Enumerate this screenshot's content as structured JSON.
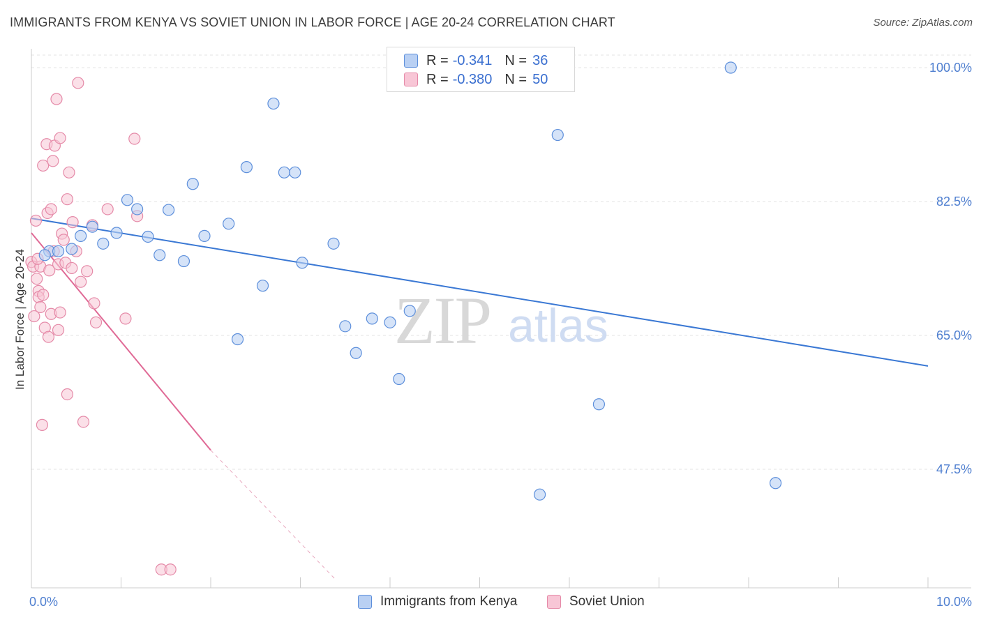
{
  "header": {
    "title": "IMMIGRANTS FROM KENYA VS SOVIET UNION IN LABOR FORCE | AGE 20-24 CORRELATION CHART",
    "source": "Source: ZipAtlas.com"
  },
  "watermark": {
    "zip": "ZIP",
    "atlas": "atlas"
  },
  "colors": {
    "blue_fill": "#b9d0f3",
    "blue_stroke": "#5d8fdb",
    "blue_line": "#3a78d4",
    "pink_fill": "#f8c6d6",
    "pink_stroke": "#e58aa8",
    "pink_line": "#e06a96",
    "accent_text": "#3a6fd0",
    "grid": "#e3e3e3"
  },
  "legend": {
    "rows": [
      {
        "r_label": "R =",
        "r_value": "-0.341",
        "n_label": "N =",
        "n_value": "36"
      },
      {
        "r_label": "R =",
        "r_value": "-0.380",
        "n_label": "N =",
        "n_value": "50"
      }
    ]
  },
  "bottom_legend": {
    "series1": "Immigrants from Kenya",
    "series2": "Soviet Union"
  },
  "chart_data": {
    "type": "scatter",
    "title": "IMMIGRANTS FROM KENYA VS SOVIET UNION IN LABOR FORCE | AGE 20-24 CORRELATION CHART",
    "xlabel": "",
    "ylabel": "In Labor Force | Age 20-24",
    "xlim": [
      0,
      10
    ],
    "ylim": [
      32.5,
      102
    ],
    "x_tick_labels": [
      {
        "value": 0,
        "label": "0.0%"
      },
      {
        "value": 10,
        "label": "10.0%"
      }
    ],
    "y_tick_labels": [
      {
        "value": 47.5,
        "label": "47.5%"
      },
      {
        "value": 65.0,
        "label": "65.0%"
      },
      {
        "value": 82.5,
        "label": "82.5%"
      },
      {
        "value": 100.0,
        "label": "100.0%"
      }
    ],
    "series": [
      {
        "name": "Immigrants from Kenya",
        "color": "#5d8fdb",
        "points": [
          [
            0.2,
            76.0
          ],
          [
            0.15,
            75.5
          ],
          [
            0.45,
            76.3
          ],
          [
            0.55,
            78.0
          ],
          [
            0.68,
            79.2
          ],
          [
            0.8,
            77.0
          ],
          [
            0.95,
            78.4
          ],
          [
            1.07,
            82.7
          ],
          [
            1.18,
            81.5
          ],
          [
            1.3,
            77.9
          ],
          [
            1.43,
            75.5
          ],
          [
            1.53,
            81.4
          ],
          [
            1.7,
            74.7
          ],
          [
            1.8,
            84.8
          ],
          [
            1.93,
            78.0
          ],
          [
            2.2,
            79.6
          ],
          [
            2.3,
            64.5
          ],
          [
            2.4,
            87.0
          ],
          [
            2.58,
            71.5
          ],
          [
            2.7,
            95.3
          ],
          [
            2.82,
            86.3
          ],
          [
            2.94,
            86.3
          ],
          [
            3.02,
            74.5
          ],
          [
            3.37,
            77.0
          ],
          [
            3.5,
            66.2
          ],
          [
            3.62,
            62.7
          ],
          [
            3.8,
            67.2
          ],
          [
            4.0,
            66.7
          ],
          [
            4.1,
            59.3
          ],
          [
            4.22,
            68.2
          ],
          [
            5.67,
            44.2
          ],
          [
            5.87,
            91.2
          ],
          [
            6.33,
            56.0
          ],
          [
            7.8,
            100.0
          ],
          [
            8.3,
            45.7
          ],
          [
            0.3,
            76.0
          ]
        ],
        "trend": {
          "x1": 0,
          "y1": 80.3,
          "x2": 10,
          "y2": 61.0
        }
      },
      {
        "name": "Soviet Union",
        "color": "#e58aa8",
        "points": [
          [
            0.0,
            74.6
          ],
          [
            0.02,
            74.0
          ],
          [
            0.05,
            80.0
          ],
          [
            0.06,
            72.4
          ],
          [
            0.08,
            70.8
          ],
          [
            0.08,
            70.0
          ],
          [
            0.1,
            74.0
          ],
          [
            0.1,
            68.7
          ],
          [
            0.12,
            53.3
          ],
          [
            0.13,
            87.2
          ],
          [
            0.15,
            66.0
          ],
          [
            0.17,
            90.0
          ],
          [
            0.18,
            81.0
          ],
          [
            0.19,
            64.8
          ],
          [
            0.2,
            73.5
          ],
          [
            0.22,
            81.5
          ],
          [
            0.22,
            67.8
          ],
          [
            0.24,
            87.8
          ],
          [
            0.26,
            89.8
          ],
          [
            0.28,
            95.9
          ],
          [
            0.3,
            74.3
          ],
          [
            0.3,
            65.7
          ],
          [
            0.32,
            90.8
          ],
          [
            0.32,
            68.0
          ],
          [
            0.34,
            78.3
          ],
          [
            0.36,
            77.5
          ],
          [
            0.38,
            74.5
          ],
          [
            0.4,
            57.3
          ],
          [
            0.4,
            82.8
          ],
          [
            0.42,
            86.3
          ],
          [
            0.46,
            79.8
          ],
          [
            0.5,
            76.0
          ],
          [
            0.52,
            98.0
          ],
          [
            0.55,
            72.0
          ],
          [
            0.58,
            53.7
          ],
          [
            0.62,
            73.4
          ],
          [
            0.68,
            79.4
          ],
          [
            0.7,
            69.2
          ],
          [
            0.72,
            66.7
          ],
          [
            0.85,
            81.5
          ],
          [
            1.05,
            67.2
          ],
          [
            1.15,
            90.7
          ],
          [
            1.18,
            80.6
          ],
          [
            1.45,
            34.4
          ],
          [
            1.55,
            34.4
          ],
          [
            0.03,
            67.5
          ],
          [
            0.07,
            75.0
          ],
          [
            0.13,
            70.3
          ],
          [
            0.45,
            73.8
          ],
          [
            0.25,
            76.0
          ]
        ],
        "trend": {
          "x1": 0,
          "y1": 78.4,
          "x2": 2.0,
          "y2": 50.0
        },
        "trend_extension": {
          "x1": 2.0,
          "y1": 50.0,
          "x2": 3.4,
          "y2": 33.0
        }
      }
    ]
  }
}
